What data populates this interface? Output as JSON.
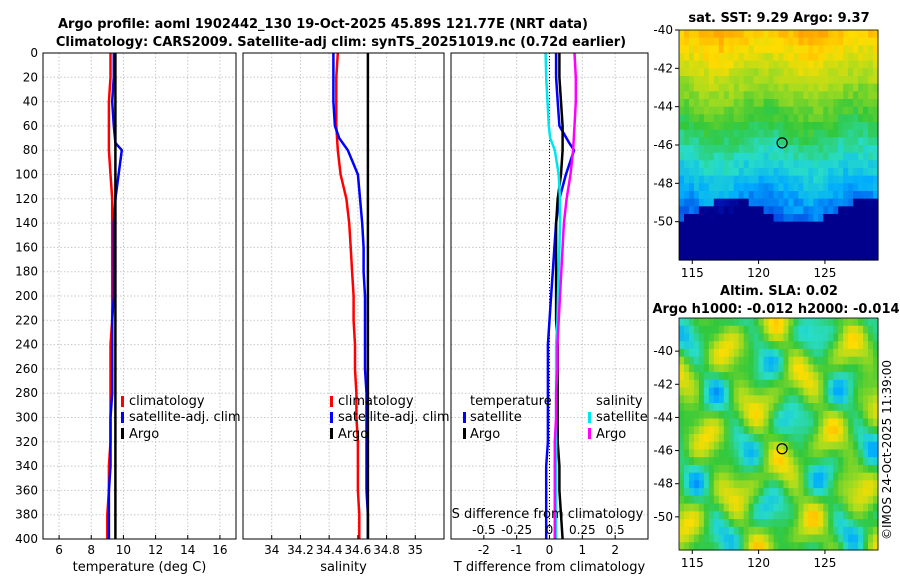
{
  "titles": {
    "line1": "Argo profile: aoml 1902442_130 19-Oct-2025 45.89S 121.77E (NRT data)",
    "line2": "Climatology: CARS2009. Satellite-adj clim: synTS_20251019.nc (0.72d earlier)"
  },
  "depth_axis": {
    "ylim": [
      0,
      400
    ],
    "ticks": [
      0,
      20,
      40,
      60,
      80,
      100,
      120,
      140,
      160,
      180,
      200,
      220,
      240,
      260,
      280,
      300,
      320,
      340,
      360,
      380,
      400
    ],
    "tick_labels": [
      "0",
      "20",
      "40",
      "60",
      "80",
      "100",
      "120",
      "140",
      "160",
      "180",
      "200",
      "220",
      "240",
      "260",
      "280",
      "300",
      "320",
      "340",
      "360",
      "380",
      "400"
    ]
  },
  "colors": {
    "climatology": "#ff0000",
    "satellite": "#0000ff",
    "argo": "#000000",
    "sal_sat": "#00e5ee",
    "sal_argo": "#ff00ff"
  },
  "chart_data": [
    {
      "id": "temperature",
      "type": "line",
      "xlabel": "temperature (deg C)",
      "xlim": [
        5,
        17
      ],
      "xticks": [
        6,
        8,
        10,
        12,
        14,
        16
      ],
      "xtick_labels": [
        "6",
        "8",
        "10",
        "12",
        "14",
        "16"
      ],
      "legend": [
        "climatology",
        "satellite-adj. clim",
        "Argo"
      ],
      "series": [
        {
          "name": "climatology",
          "color": "#ff0000",
          "x": [
            9.2,
            9.2,
            9.1,
            9.1,
            9.1,
            9.2,
            9.3,
            9.3,
            9.3,
            9.3,
            9.3,
            9.3,
            9.2,
            9.2,
            9.2,
            9.2,
            9.2,
            9.1,
            9.1,
            9.0,
            9.0
          ],
          "y": [
            0,
            20,
            40,
            60,
            80,
            100,
            120,
            140,
            160,
            180,
            200,
            220,
            240,
            260,
            280,
            300,
            320,
            340,
            360,
            380,
            400
          ]
        },
        {
          "name": "satellite-adj. clim",
          "color": "#0000ff",
          "x": [
            9.4,
            9.4,
            9.3,
            9.4,
            9.5,
            9.9,
            9.7,
            9.5,
            9.4,
            9.4,
            9.4,
            9.4,
            9.3,
            9.3,
            9.3,
            9.3,
            9.2,
            9.2,
            9.2,
            9.1,
            9.1
          ],
          "y": [
            0,
            20,
            40,
            60,
            74,
            80,
            100,
            120,
            140,
            160,
            180,
            200,
            220,
            240,
            260,
            280,
            300,
            320,
            340,
            360,
            400
          ]
        },
        {
          "name": "Argo",
          "color": "#000000",
          "x": [
            9.5,
            9.5,
            9.5,
            9.5,
            9.5,
            9.5,
            9.5,
            9.5,
            9.5,
            9.5,
            9.5,
            9.5,
            9.5,
            9.5,
            9.5,
            9.5,
            9.5,
            9.5,
            9.5,
            9.5,
            9.5
          ],
          "y": [
            0,
            20,
            40,
            60,
            80,
            100,
            120,
            140,
            160,
            180,
            200,
            220,
            240,
            260,
            280,
            300,
            320,
            340,
            360,
            380,
            400
          ]
        }
      ]
    },
    {
      "id": "salinity",
      "type": "line",
      "xlabel": "salinity",
      "xlim": [
        33.8,
        35.2
      ],
      "xticks": [
        34,
        34.2,
        34.4,
        34.6,
        34.8,
        35
      ],
      "xtick_labels": [
        "34",
        "34.2",
        "34.4",
        "34.6",
        "34.8",
        "35"
      ],
      "legend": [
        "climatology",
        "satellite-adj. clim",
        "Argo"
      ],
      "series": [
        {
          "name": "climatology",
          "color": "#ff0000",
          "x": [
            34.46,
            34.45,
            34.45,
            34.45,
            34.46,
            34.48,
            34.52,
            34.54,
            34.55,
            34.56,
            34.57,
            34.57,
            34.58,
            34.58,
            34.59,
            34.59,
            34.6,
            34.6,
            34.6,
            34.61,
            34.61
          ],
          "y": [
            0,
            20,
            40,
            60,
            80,
            100,
            120,
            140,
            160,
            180,
            200,
            220,
            240,
            260,
            280,
            300,
            320,
            340,
            360,
            380,
            400
          ]
        },
        {
          "name": "satellite-adj. clim",
          "color": "#0000ff",
          "x": [
            34.43,
            34.43,
            34.43,
            34.44,
            34.47,
            34.53,
            34.6,
            34.63,
            34.64,
            34.64,
            34.65,
            34.65,
            34.65,
            34.65,
            34.66,
            34.66,
            34.66,
            34.66,
            34.66,
            34.67,
            34.67
          ],
          "y": [
            0,
            20,
            40,
            60,
            70,
            80,
            100,
            140,
            160,
            180,
            200,
            220,
            240,
            260,
            280,
            300,
            320,
            340,
            360,
            380,
            400
          ]
        },
        {
          "name": "Argo",
          "color": "#000000",
          "x": [
            34.67,
            34.67,
            34.67,
            34.67,
            34.67,
            34.67,
            34.67,
            34.67,
            34.67,
            34.67,
            34.67,
            34.67,
            34.67,
            34.67,
            34.67,
            34.67,
            34.67,
            34.67,
            34.67,
            34.67,
            34.67
          ],
          "y": [
            0,
            20,
            40,
            60,
            80,
            100,
            120,
            140,
            160,
            180,
            200,
            220,
            240,
            260,
            280,
            300,
            320,
            340,
            360,
            380,
            400
          ]
        }
      ]
    },
    {
      "id": "differences",
      "type": "line",
      "xlabel": "T difference from climatology",
      "xlabel_top": "S difference from climatology",
      "xlim": [
        -3,
        3
      ],
      "xticks": [
        -2,
        -1,
        0,
        1,
        2
      ],
      "xtick_labels": [
        "-2",
        "-1",
        "0",
        "1",
        "2"
      ],
      "s_xticks": [
        -0.5,
        -0.25,
        0,
        0.25,
        0.5
      ],
      "s_xtick_labels": [
        "-0.5",
        "-0.25",
        "0",
        "0.25",
        "0.5"
      ],
      "legend_temperature": {
        "title": "temperature",
        "items": [
          "satellite",
          "Argo"
        ]
      },
      "legend_salinity": {
        "title": "salinity",
        "items": [
          "satellite",
          "Argo"
        ]
      },
      "series": [
        {
          "name": "temperature satellite",
          "color": "#0000ff",
          "x": [
            0.2,
            0.2,
            0.25,
            0.3,
            0.6,
            0.75,
            0.5,
            0.3,
            0.2,
            0.15,
            0.1,
            0.05,
            0.0,
            -0.05,
            -0.05,
            -0.05,
            -0.05,
            -0.05,
            -0.1,
            -0.1,
            -0.1
          ],
          "y": [
            0,
            20,
            40,
            60,
            74,
            80,
            100,
            120,
            140,
            160,
            180,
            200,
            220,
            240,
            260,
            280,
            300,
            320,
            340,
            360,
            400
          ]
        },
        {
          "name": "temperature Argo",
          "color": "#000000",
          "x": [
            0.3,
            0.3,
            0.35,
            0.4,
            0.4,
            0.35,
            0.25,
            0.2,
            0.2,
            0.2,
            0.2,
            0.2,
            0.25,
            0.25,
            0.25,
            0.25,
            0.25,
            0.3,
            0.3,
            0.35,
            0.4
          ],
          "y": [
            0,
            20,
            40,
            60,
            80,
            100,
            120,
            140,
            160,
            180,
            200,
            220,
            240,
            260,
            280,
            300,
            320,
            340,
            360,
            380,
            400
          ]
        },
        {
          "name": "salinity satellite",
          "color": "#00e5ee",
          "x": [
            -0.03,
            -0.025,
            -0.015,
            -0.005,
            0.005,
            0.04,
            0.07,
            0.08,
            0.08,
            0.075,
            0.07,
            0.065,
            0.06,
            0.05,
            0.05,
            0.05,
            0.05,
            0.05,
            0.05,
            0.05,
            0.05
          ],
          "y": [
            0,
            20,
            40,
            60,
            70,
            80,
            100,
            120,
            140,
            160,
            180,
            200,
            220,
            240,
            260,
            280,
            300,
            320,
            340,
            360,
            400
          ]
        },
        {
          "name": "salinity Argo",
          "color": "#ff00ff",
          "x": [
            0.19,
            0.2,
            0.2,
            0.19,
            0.18,
            0.16,
            0.13,
            0.11,
            0.1,
            0.09,
            0.08,
            0.07,
            0.06,
            0.06,
            0.05,
            0.05,
            0.04,
            0.04,
            0.04,
            0.04,
            0.04
          ],
          "y": [
            0,
            20,
            40,
            60,
            80,
            100,
            120,
            140,
            160,
            180,
            200,
            220,
            240,
            260,
            280,
            300,
            320,
            340,
            360,
            380,
            400
          ]
        }
      ]
    },
    {
      "id": "sst_map",
      "type": "heatmap",
      "title": "sat. SST: 9.29 Argo: 9.37",
      "xlim": [
        114,
        129
      ],
      "ylim": [
        -52,
        -40
      ],
      "xticks": [
        115,
        120,
        125
      ],
      "xtick_labels": [
        "115",
        "120",
        "125"
      ],
      "yticks": [
        -40,
        -42,
        -44,
        -46,
        -48,
        -50
      ],
      "ytick_labels": [
        "-40",
        "-42",
        "-44",
        "-46",
        "-48",
        "-50"
      ],
      "marker": {
        "lon": 121.77,
        "lat": -45.89
      }
    },
    {
      "id": "sla_map",
      "type": "heatmap",
      "title_line1": "Altim. SLA: 0.02",
      "title_line2": "Argo h1000: -0.012 h2000: -0.014",
      "xlim": [
        114,
        129
      ],
      "ylim": [
        -52,
        -38
      ],
      "xticks": [
        115,
        120,
        125
      ],
      "xtick_labels": [
        "115",
        "120",
        "125"
      ],
      "yticks": [
        -40,
        -42,
        -44,
        -46,
        -48,
        -50
      ],
      "ytick_labels": [
        "-40",
        "-42",
        "-44",
        "-46",
        "-48",
        "-50"
      ],
      "marker": {
        "lon": 121.77,
        "lat": -45.89
      }
    }
  ],
  "watermark": "©IMOS 24-Oct-2025 11:39:00"
}
